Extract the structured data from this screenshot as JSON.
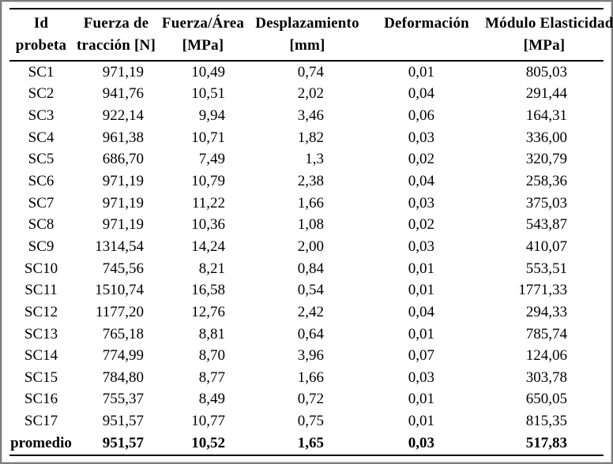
{
  "table": {
    "columns": [
      {
        "line1": "Id",
        "line2": "probeta"
      },
      {
        "line1": "Fuerza de",
        "line2": "tracción [N]"
      },
      {
        "line1": "Fuerza/Área",
        "line2": "[MPa]"
      },
      {
        "line1": "Desplazamiento",
        "line2": "[mm]"
      },
      {
        "line1": "Deformación",
        "line2": ""
      },
      {
        "line1": "Módulo Elasticidad",
        "line2": "[MPa]"
      }
    ],
    "rows": [
      [
        "SC1",
        "971,19",
        "10,49",
        "0,74",
        "0,01",
        "805,03"
      ],
      [
        "SC2",
        "941,76",
        "10,51",
        "2,02",
        "0,04",
        "291,44"
      ],
      [
        "SC3",
        "922,14",
        "9,94",
        "3,46",
        "0,06",
        "164,31"
      ],
      [
        "SC4",
        "961,38",
        "10,71",
        "1,82",
        "0,03",
        "336,00"
      ],
      [
        "SC5",
        "686,70",
        "7,49",
        "1,3",
        "0,02",
        "320,79"
      ],
      [
        "SC6",
        "971,19",
        "10,79",
        "2,38",
        "0,04",
        "258,36"
      ],
      [
        "SC7",
        "971,19",
        "11,22",
        "1,66",
        "0,03",
        "375,03"
      ],
      [
        "SC8",
        "971,19",
        "10,36",
        "1,08",
        "0,02",
        "543,87"
      ],
      [
        "SC9",
        "1314,54",
        "14,24",
        "2,00",
        "0,03",
        "410,07"
      ],
      [
        "SC10",
        "745,56",
        "8,21",
        "0,84",
        "0,01",
        "553,51"
      ],
      [
        "SC11",
        "1510,74",
        "16,58",
        "0,54",
        "0,01",
        "1771,33"
      ],
      [
        "SC12",
        "1177,20",
        "12,76",
        "2,42",
        "0,04",
        "294,33"
      ],
      [
        "SC13",
        "765,18",
        "8,81",
        "0,64",
        "0,01",
        "785,74"
      ],
      [
        "SC14",
        "774,99",
        "8,70",
        "3,96",
        "0,07",
        "124,06"
      ],
      [
        "SC15",
        "784,80",
        "8,77",
        "1,66",
        "0,03",
        "303,78"
      ],
      [
        "SC16",
        "755,37",
        "8,49",
        "0,72",
        "0,01",
        "650,05"
      ],
      [
        "SC17",
        "951,57",
        "10,77",
        "0,75",
        "0,01",
        "815,35"
      ]
    ],
    "footer": [
      "promedio",
      "951,57",
      "10,52",
      "1,65",
      "0,03",
      "517,83"
    ],
    "colors": {
      "rule": "#000000",
      "frame": "#7d7d7d",
      "text": "#000000",
      "background": "#ffffff"
    }
  }
}
